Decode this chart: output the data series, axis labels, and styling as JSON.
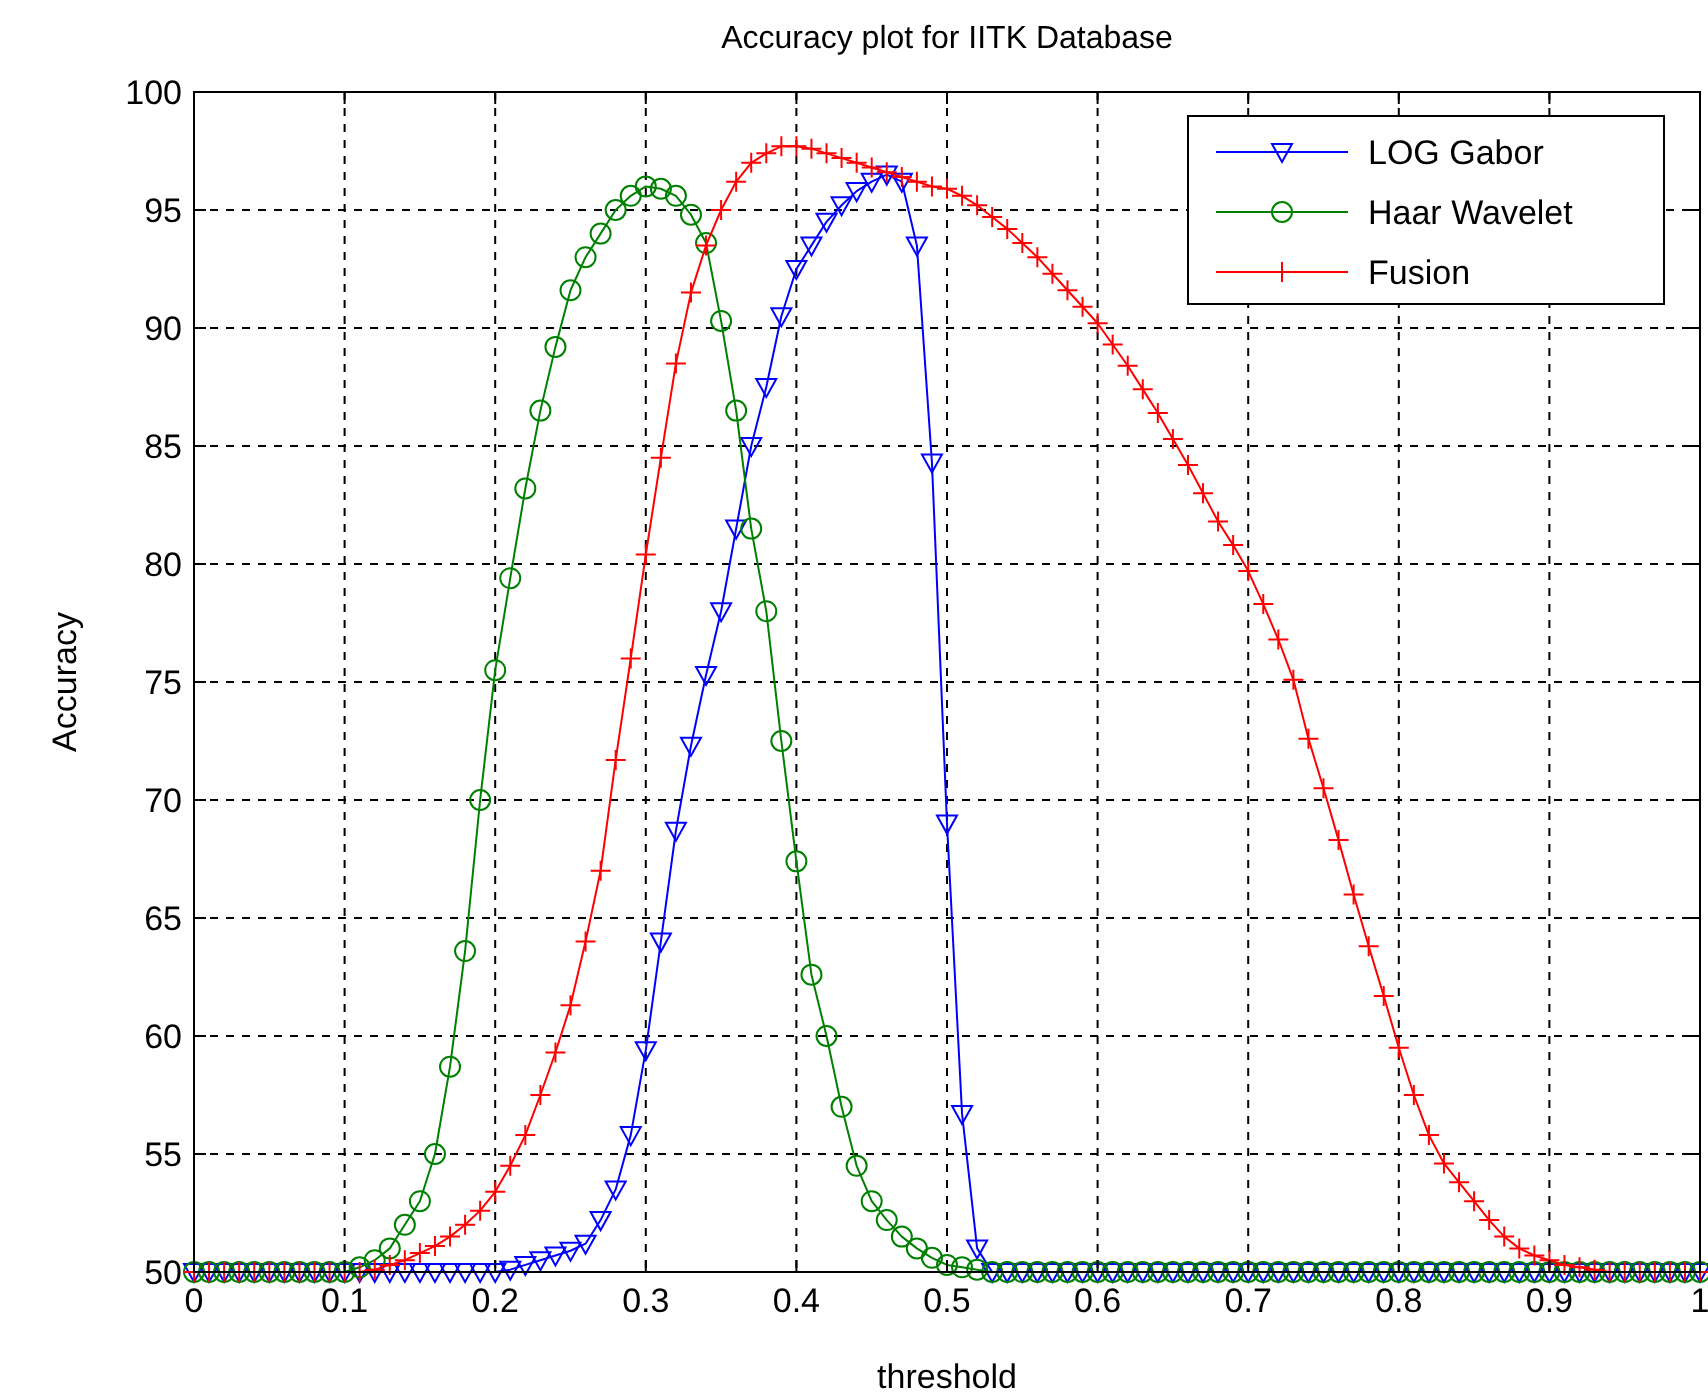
{
  "chart_data": {
    "type": "line",
    "title": "Accuracy plot for IITK Database",
    "xlabel": "threshold",
    "ylabel": "Accuracy",
    "x": [
      0,
      0.01,
      0.02,
      0.03,
      0.04,
      0.05,
      0.06,
      0.07,
      0.08,
      0.09,
      0.1,
      0.11,
      0.12,
      0.13,
      0.14,
      0.15,
      0.16,
      0.17,
      0.18,
      0.19,
      0.2,
      0.21,
      0.22,
      0.23,
      0.24,
      0.25,
      0.26,
      0.27,
      0.28,
      0.29,
      0.3,
      0.31,
      0.32,
      0.33,
      0.34,
      0.35,
      0.36,
      0.37,
      0.38,
      0.39,
      0.4,
      0.41,
      0.42,
      0.43,
      0.44,
      0.45,
      0.46,
      0.47,
      0.48,
      0.49,
      0.5,
      0.51,
      0.52,
      0.53,
      0.54,
      0.55,
      0.56,
      0.57,
      0.58,
      0.59,
      0.6,
      0.61,
      0.62,
      0.63,
      0.64,
      0.65,
      0.66,
      0.67,
      0.68,
      0.69,
      0.7,
      0.71,
      0.72,
      0.73,
      0.74,
      0.75,
      0.76,
      0.77,
      0.78,
      0.79,
      0.8,
      0.81,
      0.82,
      0.83,
      0.84,
      0.85,
      0.86,
      0.87,
      0.88,
      0.89,
      0.9,
      0.91,
      0.92,
      0.93,
      0.94,
      0.95,
      0.96,
      0.97,
      0.98,
      0.99,
      1
    ],
    "series": [
      {
        "name": "LOG Gabor",
        "color": "#0000ff",
        "marker": "triangle",
        "values": [
          50,
          50,
          50,
          50,
          50,
          50,
          50,
          50,
          50,
          50,
          50,
          50,
          50,
          50,
          50,
          50,
          50,
          50,
          50,
          50,
          50,
          50.1,
          50.3,
          50.5,
          50.7,
          50.9,
          51.2,
          52.2,
          53.5,
          55.8,
          59.4,
          64,
          68.7,
          72.3,
          75.3,
          78,
          81.5,
          85,
          87.5,
          90.5,
          92.5,
          93.5,
          94.5,
          95.2,
          95.8,
          96.2,
          96.5,
          96.2,
          93.5,
          84.3,
          69,
          56.7,
          51,
          50,
          50,
          50,
          50,
          50,
          50,
          50,
          50,
          50,
          50,
          50,
          50,
          50,
          50,
          50,
          50,
          50,
          50,
          50,
          50,
          50,
          50,
          50,
          50,
          50,
          50,
          50,
          50,
          50,
          50,
          50,
          50,
          50,
          50,
          50,
          50,
          50,
          50,
          50,
          50,
          50,
          50,
          50,
          50,
          50,
          50,
          50,
          50
        ]
      },
      {
        "name": "Haar Wavelet",
        "color": "#008000",
        "marker": "circle",
        "values": [
          50,
          50,
          50,
          50,
          50,
          50,
          50,
          50,
          50,
          50,
          50,
          50.2,
          50.5,
          51,
          52,
          53,
          55,
          58.7,
          63.6,
          70,
          75.5,
          79.4,
          83.2,
          86.5,
          89.2,
          91.6,
          93,
          94,
          95,
          95.6,
          96,
          95.9,
          95.6,
          94.8,
          93.6,
          90.3,
          86.5,
          81.5,
          78,
          72.5,
          67.4,
          62.6,
          60,
          57,
          54.5,
          53,
          52.2,
          51.5,
          51,
          50.6,
          50.3,
          50.2,
          50.1,
          50,
          50,
          50,
          50,
          50,
          50,
          50,
          50,
          50,
          50,
          50,
          50,
          50,
          50,
          50,
          50,
          50,
          50,
          50,
          50,
          50,
          50,
          50,
          50,
          50,
          50,
          50,
          50,
          50,
          50,
          50,
          50,
          50,
          50,
          50,
          50,
          50,
          50,
          50,
          50,
          50,
          50,
          50,
          50,
          50,
          50,
          50,
          50
        ]
      },
      {
        "name": "Fusion",
        "color": "#ff0000",
        "marker": "cross",
        "values": [
          50,
          50,
          50,
          50,
          50,
          50,
          50,
          50,
          50,
          50,
          50,
          50,
          50.1,
          50.3,
          50.5,
          50.8,
          51.1,
          51.5,
          52,
          52.6,
          53.4,
          54.5,
          55.8,
          57.5,
          59.3,
          61.3,
          64,
          67,
          71.7,
          76,
          80.4,
          84.5,
          88.5,
          91.5,
          93.5,
          95,
          96.2,
          97,
          97.4,
          97.7,
          97.7,
          97.6,
          97.4,
          97.2,
          97,
          96.8,
          96.6,
          96.4,
          96.2,
          96,
          95.9,
          95.6,
          95.2,
          94.7,
          94.2,
          93.6,
          93,
          92.3,
          91.6,
          90.9,
          90.2,
          89.3,
          88.4,
          87.4,
          86.4,
          85.3,
          84.2,
          83,
          81.8,
          80.8,
          79.7,
          78.3,
          76.8,
          75.1,
          72.6,
          70.5,
          68.3,
          66,
          63.8,
          61.7,
          59.5,
          57.5,
          55.8,
          54.6,
          53.8,
          53,
          52.2,
          51.5,
          51,
          50.7,
          50.5,
          50.3,
          50.2,
          50.1,
          50,
          50,
          50,
          50,
          50,
          50,
          50
        ]
      }
    ],
    "xlim": [
      0,
      1
    ],
    "xticks": [
      0,
      0.1,
      0.2,
      0.3,
      0.4,
      0.5,
      0.6,
      0.7,
      0.8,
      0.9,
      1
    ],
    "ylim": [
      50,
      100
    ],
    "yticks": [
      50,
      55,
      60,
      65,
      70,
      75,
      80,
      85,
      90,
      95,
      100
    ],
    "grid": true,
    "legend": "top right",
    "line_style": "solid"
  }
}
